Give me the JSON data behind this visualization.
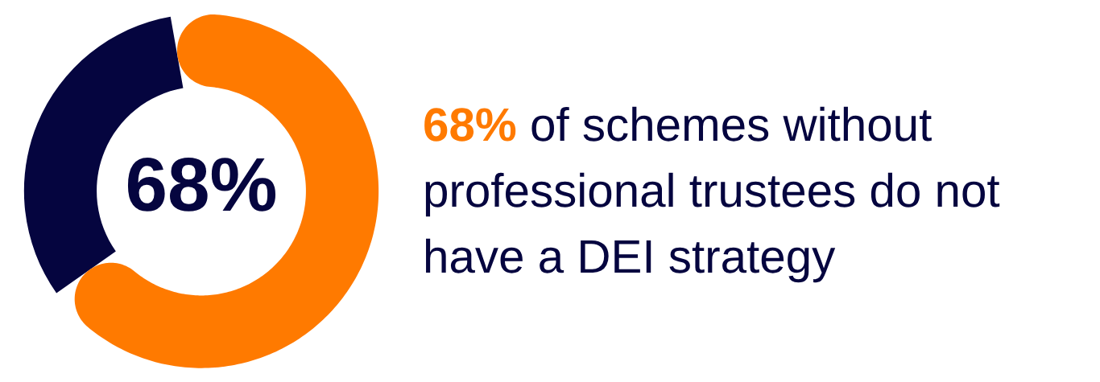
{
  "chart_data": {
    "type": "donut",
    "categories": [
      null,
      null
    ],
    "values": [
      68,
      32
    ],
    "colors": [
      "#ff7a00",
      "#05053f"
    ],
    "value_labels": [
      "68%",
      null
    ],
    "annotations": [
      "68% of schemes without professional trustees do not have a DEI strategy"
    ]
  }
}
